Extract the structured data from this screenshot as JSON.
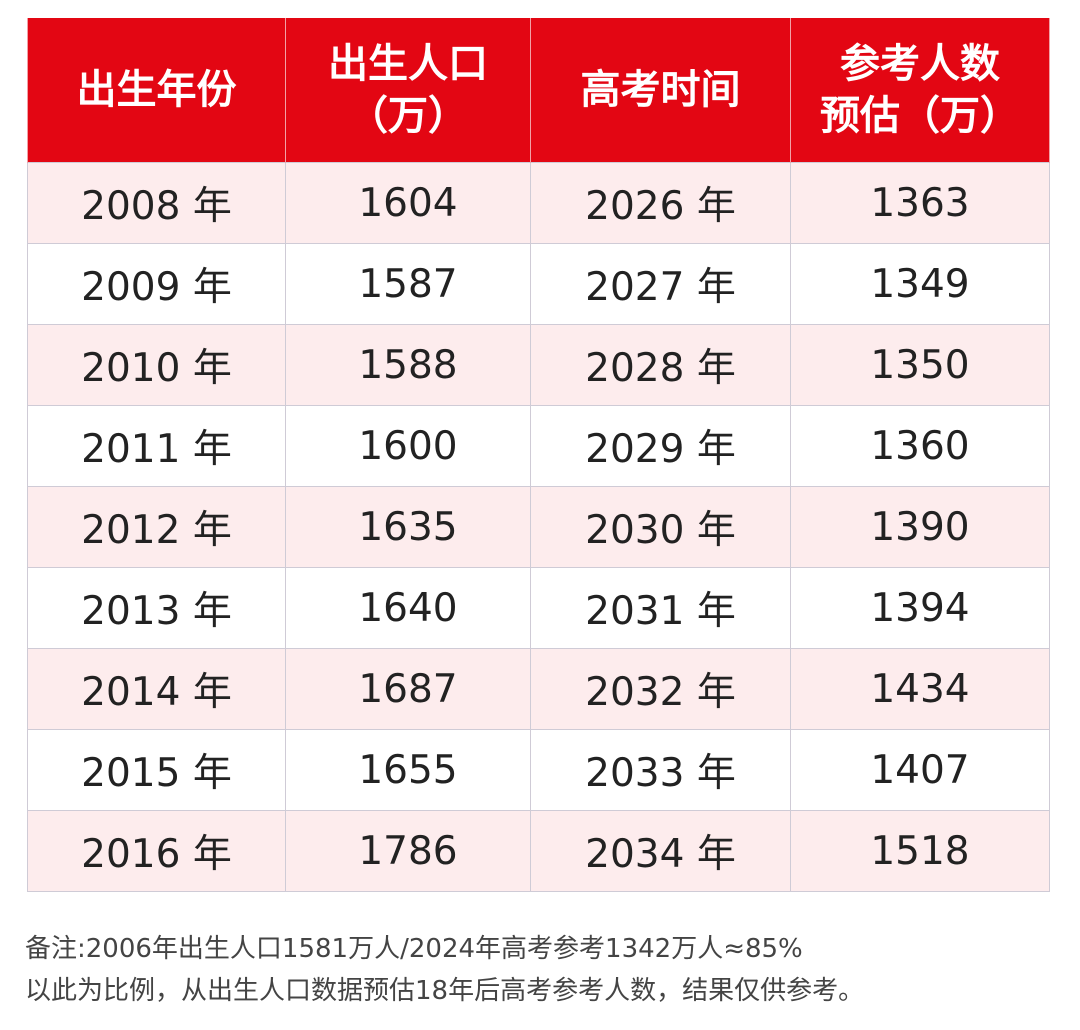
{
  "table": {
    "headers": [
      {
        "lines": [
          "出生年份"
        ]
      },
      {
        "lines": [
          "出生人口",
          "（万）"
        ]
      },
      {
        "lines": [
          "高考时间"
        ]
      },
      {
        "lines": [
          "参考人数",
          "预估（万）"
        ]
      }
    ],
    "rows": [
      [
        "2008 年",
        "1604",
        "2026 年",
        "1363"
      ],
      [
        "2009 年",
        "1587",
        "2027 年",
        "1349"
      ],
      [
        "2010 年",
        "1588",
        "2028 年",
        "1350"
      ],
      [
        "2011 年",
        "1600",
        "2029 年",
        "1360"
      ],
      [
        "2012 年",
        "1635",
        "2030 年",
        "1390"
      ],
      [
        "2013 年",
        "1640",
        "2031 年",
        "1394"
      ],
      [
        "2014 年",
        "1687",
        "2032 年",
        "1434"
      ],
      [
        "2015 年",
        "1655",
        "2033 年",
        "1407"
      ],
      [
        "2016 年",
        "1786",
        "2034 年",
        "1518"
      ]
    ]
  },
  "note": {
    "line1": "备注:2006年出生人口1581万人/2024年高考参考1342万人≈85%",
    "line2": "以此为比例，从出生人口数据预估18年后高考参考人数，结果仅供参考。"
  },
  "colors": {
    "header_bg": "#e30613",
    "stripe_bg": "#fdeced"
  }
}
